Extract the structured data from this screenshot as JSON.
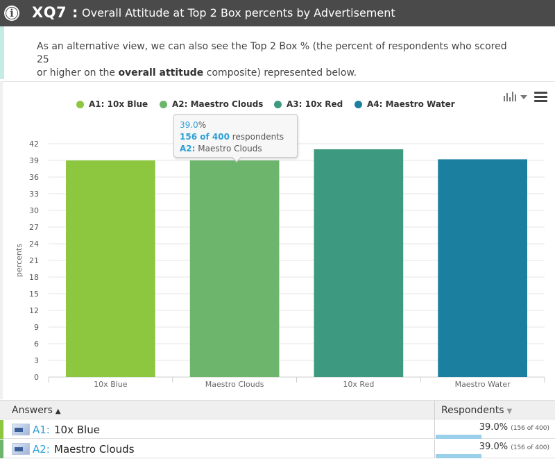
{
  "header": {
    "question_id": "XQ7 :",
    "title": "Overall Attitude at Top 2 Box percents by Advertisement",
    "info_icon": "info-icon"
  },
  "description": {
    "line1": "As an alternative view, we can also see the Top 2 Box % (the percent of respondents who scored 25",
    "line2_prefix": "or higher on the ",
    "line2_bold": "overall attitude",
    "line2_suffix": " composite) represented below."
  },
  "toolbar": {
    "chart_type_icon": "bar-chart-icon",
    "menu_icon": "hamburger-menu-icon"
  },
  "legend": [
    {
      "label": "A1: 10x Blue",
      "color": "#8dc63f"
    },
    {
      "label": "A2: Maestro Clouds",
      "color": "#6db56d"
    },
    {
      "label": "A3: 10x Red",
      "color": "#3d9a80"
    },
    {
      "label": "A4: Maestro Water",
      "color": "#1b7fa0"
    }
  ],
  "tooltip": {
    "value": "39.0",
    "value_unit": "%",
    "count": "156 of 400",
    "count_suffix": " respondents",
    "series": "A2:",
    "series_name": " Maestro Clouds"
  },
  "chart_data": {
    "type": "bar",
    "categories": [
      "10x Blue",
      "Maestro Clouds",
      "10x Red",
      "Maestro Water"
    ],
    "values": [
      39.0,
      39.0,
      41.0,
      39.2
    ],
    "colors": [
      "#8dc63f",
      "#6db56d",
      "#3d9a80",
      "#1b7fa0"
    ],
    "ylabel": "percents",
    "xlabel": "",
    "ylim": [
      0,
      42
    ],
    "yticks": [
      0,
      3,
      6,
      9,
      12,
      15,
      18,
      21,
      24,
      27,
      30,
      33,
      36,
      39,
      42
    ],
    "grid": true,
    "legend_position": "top"
  },
  "table": {
    "col_answers": "Answers",
    "col_answers_sort": "▲",
    "col_respondents": "Respondents",
    "col_respondents_sort": "▼",
    "rows": [
      {
        "code": "A1:",
        "name": "10x Blue",
        "pct": "39.0%",
        "count": "(156 of 400)",
        "fraction": 0.39,
        "accent": "#8dc63f"
      },
      {
        "code": "A2:",
        "name": "Maestro Clouds",
        "pct": "39.0%",
        "count": "(156 of 400)",
        "fraction": 0.39,
        "accent": "#6db56d"
      }
    ]
  }
}
